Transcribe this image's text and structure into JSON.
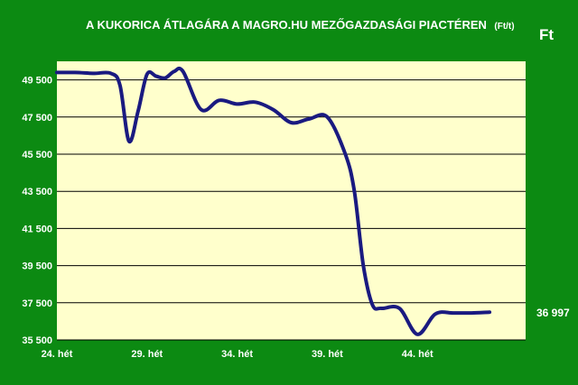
{
  "chart_data": {
    "type": "line",
    "title": "A KUKORICA ÁTLAGÁRA A MAGRO.HU MEZŐGAZDASÁGI PIACTÉREN",
    "title_unit": "(Ft/t)",
    "ylabel": "Ft",
    "ylim": [
      35500,
      50500
    ],
    "yticks": [
      "49 500",
      "47 500",
      "45 500",
      "43 500",
      "41 500",
      "39 500",
      "37 500",
      "35 500"
    ],
    "ytick_values": [
      49500,
      47500,
      45500,
      43500,
      41500,
      39500,
      37500,
      35500
    ],
    "xticks": [
      "24. hét",
      "29. hét",
      "34. hét",
      "39. hét",
      "44. hét"
    ],
    "xtick_values": [
      24,
      29,
      34,
      39,
      44
    ],
    "xlim": [
      24,
      50
    ],
    "grid": true,
    "end_label": "36 997",
    "colors": {
      "background": "#0c8a12",
      "plot": "#ffffcc",
      "line": "#1a1a80",
      "grid": "#000000"
    },
    "series": [
      {
        "x": [
          24,
          25,
          26,
          27,
          27.5,
          28,
          28.5,
          29,
          29.5,
          30,
          30.5,
          31,
          32,
          33,
          34,
          35,
          36,
          37,
          38,
          39,
          40,
          40.5,
          41,
          41.5,
          42,
          43,
          44,
          45,
          46,
          47,
          48
        ],
        "values": [
          49900,
          49900,
          49850,
          49850,
          49200,
          46200,
          47800,
          49800,
          49700,
          49600,
          49950,
          49950,
          47900,
          48400,
          48200,
          48300,
          47900,
          47200,
          47400,
          47500,
          45500,
          43500,
          39500,
          37400,
          37200,
          37200,
          35800,
          36900,
          36950,
          36950,
          36997
        ]
      }
    ]
  }
}
